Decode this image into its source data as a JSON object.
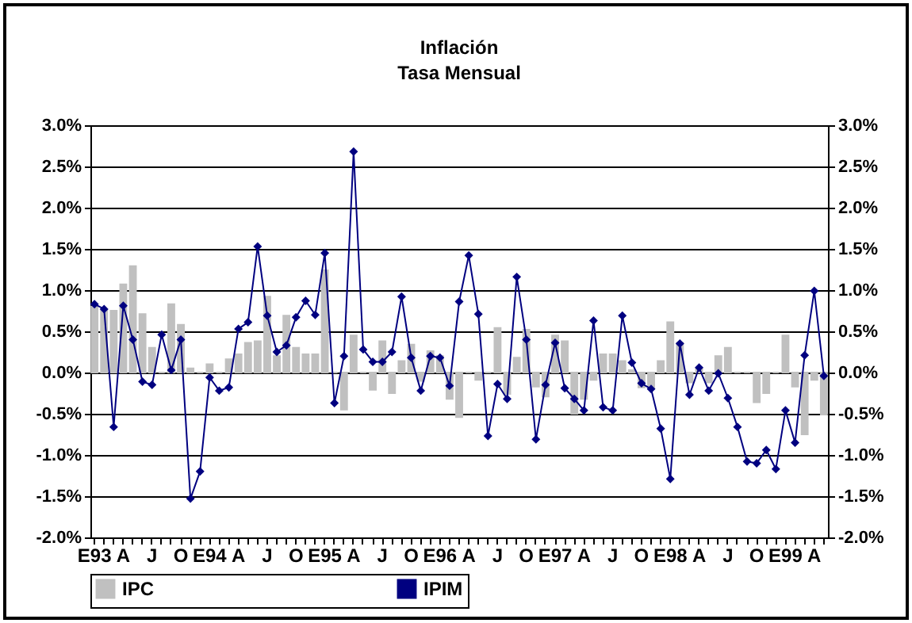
{
  "chart_data": {
    "type": "bar",
    "title": "Inflación",
    "subtitle": "Tasa Mensual",
    "categories": [
      "E93",
      null,
      null,
      "A",
      null,
      null,
      "J",
      null,
      null,
      "O",
      null,
      null,
      "E94",
      null,
      null,
      "A",
      null,
      null,
      "J",
      null,
      null,
      "O",
      null,
      null,
      "E95",
      null,
      null,
      "A",
      null,
      null,
      "J",
      null,
      null,
      "O",
      null,
      null,
      "E96",
      null,
      null,
      "A",
      null,
      null,
      "J",
      null,
      null,
      "O",
      null,
      null,
      "E97",
      null,
      null,
      "A",
      null,
      null,
      "J",
      null,
      null,
      "O",
      null,
      null,
      "E98",
      null,
      null,
      "A",
      null,
      null,
      "J",
      null,
      null,
      "O",
      null,
      null,
      "E99",
      null,
      null,
      "A",
      null
    ],
    "series": [
      {
        "name": "IPC",
        "color": "#c0c0c0",
        "values": [
          0.8,
          0.75,
          0.75,
          1.07,
          1.29,
          0.71,
          0.3,
          0,
          0.83,
          0.58,
          0.05,
          0,
          0.1,
          0,
          0.16,
          0.22,
          0.36,
          0.38,
          0.92,
          0.2,
          0.69,
          0.3,
          0.22,
          0.22,
          1.24,
          0,
          -0.45,
          0.45,
          0,
          -0.21,
          0.38,
          -0.25,
          0.14,
          0.34,
          -0.1,
          0.26,
          0.2,
          -0.32,
          -0.54,
          0,
          -0.09,
          0,
          0.54,
          -0.26,
          0.18,
          0.52,
          -0.17,
          -0.29,
          0.45,
          0.38,
          -0.5,
          -0.32,
          -0.09,
          0.22,
          0.22,
          0.14,
          0.03,
          -0.18,
          -0.19,
          0.14,
          0.61,
          0.36,
          -0.12,
          0.05,
          -0.12,
          0.2,
          0.3,
          0,
          0,
          -0.36,
          -0.25,
          0,
          0.45,
          -0.17,
          -0.75,
          -0.09,
          -0.51
        ]
      },
      {
        "name": "IPIM",
        "type": "line",
        "color": "#000080",
        "values": [
          0.83,
          0.77,
          -0.66,
          0.81,
          0.4,
          -0.11,
          -0.15,
          0.46,
          0.03,
          0.4,
          -1.53,
          -1.2,
          -0.06,
          -0.22,
          -0.18,
          0.53,
          0.61,
          1.53,
          0.69,
          0.25,
          0.33,
          0.67,
          0.87,
          0.7,
          1.45,
          -0.37,
          0.2,
          2.68,
          0.28,
          0.13,
          0.13,
          0.25,
          0.92,
          0.18,
          -0.22,
          0.2,
          0.18,
          -0.16,
          0.86,
          1.42,
          0.71,
          -0.77,
          -0.14,
          -0.32,
          1.16,
          0.4,
          -0.81,
          -0.15,
          0.36,
          -0.19,
          -0.32,
          -0.46,
          0.63,
          -0.42,
          -0.46,
          0.69,
          0.12,
          -0.13,
          -0.2,
          -0.68,
          -1.29,
          0.35,
          -0.27,
          0.06,
          -0.22,
          -0.01,
          -0.31,
          -0.66,
          -1.08,
          -1.1,
          -0.94,
          -1.17,
          -0.46,
          -0.85,
          0.21,
          0.99,
          -0.04
        ]
      }
    ],
    "ylim": [
      -2,
      3
    ],
    "yticks": [
      {
        "value": -2,
        "label": "-2.0%"
      },
      {
        "value": -1.5,
        "label": "-1.5%"
      },
      {
        "value": -1,
        "label": "-1.0%"
      },
      {
        "value": -0.5,
        "label": "-0.5%"
      },
      {
        "value": 0,
        "label": "0.0%"
      },
      {
        "value": 0.5,
        "label": "0.5%"
      },
      {
        "value": 1,
        "label": "1.0%"
      },
      {
        "value": 1.5,
        "label": "1.5%"
      },
      {
        "value": 2,
        "label": "2.0%"
      },
      {
        "value": 2.5,
        "label": "2.5%"
      },
      {
        "value": 3,
        "label": "3.0%"
      }
    ],
    "y2lim": [
      -2,
      3
    ],
    "y2ticks": [
      {
        "value": -2,
        "label": "-2.0%"
      },
      {
        "value": -1.5,
        "label": "-1.5%"
      },
      {
        "value": -1,
        "label": "-1.0%"
      },
      {
        "value": -0.5,
        "label": "-0.5%"
      },
      {
        "value": 0,
        "label": "0.0%"
      },
      {
        "value": 0.5,
        "label": "0.5%"
      },
      {
        "value": 1,
        "label": "1.0%"
      },
      {
        "value": 1.5,
        "label": "1.5%"
      },
      {
        "value": 2,
        "label": "2.0%"
      },
      {
        "value": 2.5,
        "label": "2.5%"
      },
      {
        "value": 3,
        "label": "3.0%"
      }
    ],
    "grid": "y",
    "legend": "bottom",
    "marker": "diamond"
  }
}
